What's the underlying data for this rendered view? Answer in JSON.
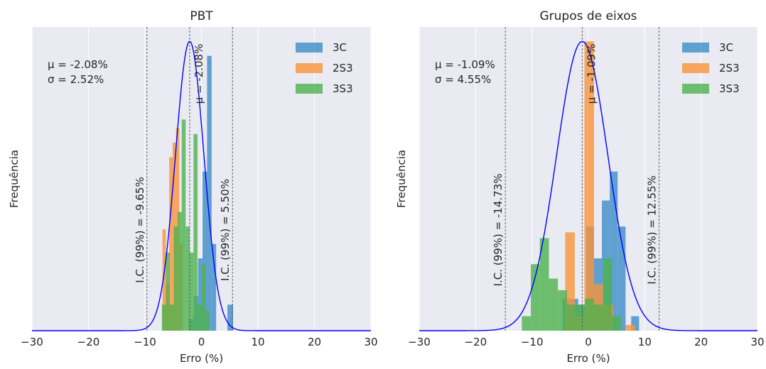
{
  "colors": {
    "plot_bg": "#EAEAF2",
    "grid": "#FFFFFF",
    "series_3C": "#3C8DC8",
    "series_2S3": "#F9943A",
    "series_3S3": "#4DB14D",
    "fit_line": "#0000FF",
    "ci_line": "#555555",
    "mu_line": "#555555"
  },
  "chart_data": [
    {
      "type": "bar",
      "subtype": "overlaid-histogram-with-normal-fit",
      "title": "PBT",
      "xlabel": "Erro (%)",
      "ylabel": "Frequência",
      "xlim": [
        -30,
        30
      ],
      "ylim": [
        0,
        1.05
      ],
      "y_ticks_shown": false,
      "x_ticks": [
        -30,
        -20,
        -10,
        0,
        10,
        20,
        30
      ],
      "grid": true,
      "legend": {
        "placement": "top-right",
        "entries": [
          "3C",
          "2S3",
          "3S3"
        ]
      },
      "stats_text": [
        "μ = -2.08%",
        "σ = 2.52%"
      ],
      "mean": -2.08,
      "std": 2.52,
      "mean_label": "μ = -2.08%",
      "ci_lower": -9.65,
      "ci_upper": 5.5,
      "ci_lower_label": "I.C. (99%) = -9.65%",
      "ci_upper_label": "I.C. (99%) = 5.50%",
      "series": [
        {
          "name": "3C",
          "color": "#3C8DC8",
          "bins": [
            [
              -2.2,
              -1.4,
              0.04
            ],
            [
              -1.4,
              -0.6,
              0.12
            ],
            [
              -0.6,
              0.2,
              0.25
            ],
            [
              0.2,
              1.0,
              0.55
            ],
            [
              1.0,
              1.8,
              0.95
            ],
            [
              1.8,
              2.6,
              0.3
            ],
            [
              4.6,
              5.6,
              0.09
            ]
          ]
        },
        {
          "name": "2S3",
          "color": "#F9943A",
          "bins": [
            [
              -6.9,
              -6.3,
              0.35
            ],
            [
              -6.3,
              -5.7,
              0.16
            ],
            [
              -5.7,
              -5.1,
              0.6
            ],
            [
              -5.1,
              -4.5,
              0.65
            ],
            [
              -4.5,
              -3.9,
              0.7
            ],
            [
              -3.9,
              -3.3,
              0.3
            ]
          ]
        },
        {
          "name": "3S3",
          "color": "#4DB14D",
          "bins": [
            [
              -7.0,
              -6.3,
              0.09
            ],
            [
              -6.3,
              -5.6,
              0.27
            ],
            [
              -5.6,
              -4.9,
              0.09
            ],
            [
              -4.9,
              -4.2,
              0.36
            ],
            [
              -4.2,
              -3.5,
              0.41
            ],
            [
              -3.5,
              -2.8,
              0.73
            ],
            [
              -2.8,
              -2.1,
              0.36
            ],
            [
              -2.1,
              -1.4,
              0.27
            ],
            [
              -1.4,
              -0.7,
              0.68
            ],
            [
              -0.7,
              0.0,
              0.09
            ],
            [
              0.0,
              0.7,
              0.23
            ],
            [
              0.7,
              1.4,
              0.07
            ]
          ]
        }
      ]
    },
    {
      "type": "bar",
      "subtype": "overlaid-histogram-with-normal-fit",
      "title": "Grupos de eixos",
      "xlabel": "Erro (%)",
      "ylabel": "Frequência",
      "xlim": [
        -30,
        30
      ],
      "ylim": [
        0,
        1.05
      ],
      "y_ticks_shown": false,
      "x_ticks": [
        -30,
        -20,
        -10,
        0,
        10,
        20,
        30
      ],
      "grid": true,
      "legend": {
        "placement": "top-right",
        "entries": [
          "3C",
          "2S3",
          "3S3"
        ]
      },
      "stats_text": [
        "μ = -1.09%",
        "σ = 4.55%"
      ],
      "mean": -1.09,
      "std": 4.55,
      "mean_label": "μ = -1.09%",
      "ci_lower": -14.73,
      "ci_upper": 12.55,
      "ci_lower_label": "I.C. (99%) = -14.73%",
      "ci_upper_label": "I.C. (99%) = 12.55%",
      "series": [
        {
          "name": "3C",
          "color": "#3C8DC8",
          "bins": [
            [
              -4.6,
              -3.2,
              0.11
            ],
            [
              -3.2,
              -1.8,
              0.11
            ],
            [
              -1.8,
              -0.4,
              0.09
            ],
            [
              -0.4,
              1.0,
              0.36
            ],
            [
              1.0,
              2.4,
              0.25
            ],
            [
              2.4,
              3.8,
              0.45
            ],
            [
              3.8,
              5.2,
              0.55
            ],
            [
              5.2,
              6.6,
              0.36
            ],
            [
              7.6,
              9.0,
              0.05
            ]
          ]
        },
        {
          "name": "2S3",
          "color": "#F9943A",
          "bins": [
            [
              -4.1,
              -2.4,
              0.34
            ],
            [
              -2.4,
              -0.7,
              0.05
            ],
            [
              -0.7,
              1.0,
              1.0
            ],
            [
              1.0,
              2.7,
              0.16
            ],
            [
              2.7,
              4.4,
              0.09
            ],
            [
              6.6,
              8.3,
              0.02
            ]
          ]
        },
        {
          "name": "3S3",
          "color": "#4DB14D",
          "bins": [
            [
              -11.8,
              -10.2,
              0.05
            ],
            [
              -10.2,
              -8.6,
              0.23
            ],
            [
              -8.6,
              -7.0,
              0.32
            ],
            [
              -7.0,
              -5.4,
              0.18
            ],
            [
              -5.4,
              -3.8,
              0.14
            ],
            [
              -3.8,
              -2.2,
              0.09
            ],
            [
              -2.2,
              -0.6,
              0.09
            ],
            [
              -0.6,
              1.0,
              0.11
            ],
            [
              1.0,
              2.6,
              0.09
            ],
            [
              2.6,
              4.2,
              0.25
            ],
            [
              4.2,
              5.8,
              0.05
            ]
          ]
        }
      ]
    }
  ]
}
